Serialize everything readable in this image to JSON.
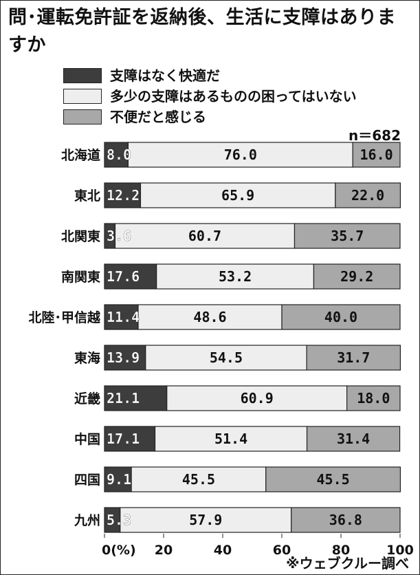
{
  "title": "問･運転免許証を返納後、生活に支障はありますか",
  "note": "n＝682",
  "source": "※ウェブクルー調べ",
  "colors": {
    "comfortable": "#3d3d3d",
    "some": "#eeeeee",
    "inconvenient": "#a8a8a8"
  },
  "chart_data": {
    "type": "bar",
    "orientation": "horizontal",
    "stacked": true,
    "categories": [
      "北海道",
      "東北",
      "北関東",
      "南関東",
      "北陸･甲信越",
      "東海",
      "近畿",
      "中国",
      "四国",
      "九州"
    ],
    "series": [
      {
        "name": "支障はなく快適だ",
        "values": [
          8.0,
          12.2,
          3.6,
          17.6,
          11.4,
          13.9,
          21.1,
          17.1,
          9.1,
          5.3
        ]
      },
      {
        "name": "多少の支障はあるものの困ってはいない",
        "values": [
          76.0,
          65.9,
          60.7,
          53.2,
          48.6,
          54.5,
          60.9,
          51.4,
          45.5,
          57.9
        ]
      },
      {
        "name": "不便だと感じる",
        "values": [
          16.0,
          22.0,
          35.7,
          29.2,
          40.0,
          31.7,
          18.0,
          31.4,
          45.5,
          36.8
        ]
      }
    ],
    "data_labels": [
      [
        "8.0",
        "12.2",
        "3.6",
        "17.6",
        "11.4",
        "13.9",
        "21.1",
        "17.1",
        "9.1",
        "5.3"
      ],
      [
        "76.0",
        "65.9",
        "60.7",
        "53.2",
        "48.6",
        "54.5",
        "60.9",
        "51.4",
        "45.5",
        "57.9"
      ],
      [
        "16.0",
        "22.0",
        "35.7",
        "29.2",
        "40.0",
        "31.7",
        "18.0",
        "31.4",
        "45.5",
        "36.8"
      ]
    ],
    "xlim": [
      0,
      100
    ],
    "xticks": [
      0,
      20,
      40,
      60,
      80,
      100
    ],
    "xtick_labels": [
      "0(%)",
      "20",
      "40",
      "60",
      "80",
      "100"
    ],
    "legend_position": "top"
  }
}
